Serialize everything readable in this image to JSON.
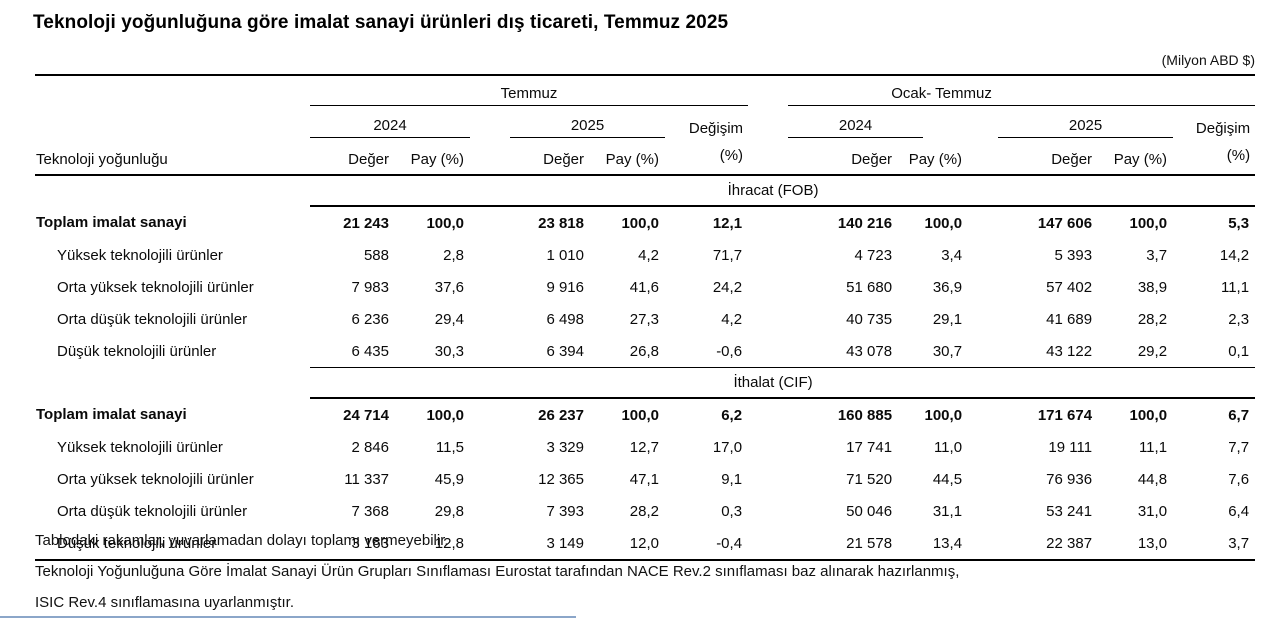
{
  "title": "Teknoloji yoğunluğuna göre imalat sanayi ürünleri dış ticareti, Temmuz 2025",
  "unit_note": "(Milyon ABD $)",
  "table": {
    "row_header": "Teknoloji yoğunluğu",
    "headers": {
      "group1": "Temmuz",
      "group2": "Ocak- Temmuz",
      "year1": "2024",
      "year2": "2025",
      "value": "Değer",
      "share": "Pay (%)",
      "change": "Değişim",
      "change_unit": "(%)"
    },
    "sections": [
      {
        "name": "İhracat (FOB)",
        "rows": [
          {
            "label": "Toplam imalat sanayi",
            "total": true,
            "values": [
              "21 243",
              "100,0",
              "23 818",
              "100,0",
              "12,1",
              "140 216",
              "100,0",
              "147 606",
              "100,0",
              "5,3"
            ]
          },
          {
            "label": "Yüksek teknolojili ürünler",
            "total": false,
            "values": [
              "588",
              "2,8",
              "1 010",
              "4,2",
              "71,7",
              "4 723",
              "3,4",
              "5 393",
              "3,7",
              "14,2"
            ]
          },
          {
            "label": "Orta yüksek teknolojili ürünler",
            "total": false,
            "values": [
              "7 983",
              "37,6",
              "9 916",
              "41,6",
              "24,2",
              "51 680",
              "36,9",
              "57 402",
              "38,9",
              "11,1"
            ]
          },
          {
            "label": "Orta düşük teknolojili ürünler",
            "total": false,
            "values": [
              "6 236",
              "29,4",
              "6 498",
              "27,3",
              "4,2",
              "40 735",
              "29,1",
              "41 689",
              "28,2",
              "2,3"
            ]
          },
          {
            "label": "Düşük teknolojili ürünler",
            "total": false,
            "values": [
              "6 435",
              "30,3",
              "6 394",
              "26,8",
              "-0,6",
              "43 078",
              "30,7",
              "43 122",
              "29,2",
              "0,1"
            ]
          }
        ]
      },
      {
        "name": "İthalat (CIF)",
        "rows": [
          {
            "label": "Toplam imalat sanayi",
            "total": true,
            "values": [
              "24 714",
              "100,0",
              "26 237",
              "100,0",
              "6,2",
              "160 885",
              "100,0",
              "171 674",
              "100,0",
              "6,7"
            ]
          },
          {
            "label": "Yüksek teknolojili ürünler",
            "total": false,
            "values": [
              "2 846",
              "11,5",
              "3 329",
              "12,7",
              "17,0",
              "17 741",
              "11,0",
              "19 111",
              "11,1",
              "7,7"
            ]
          },
          {
            "label": "Orta yüksek teknolojili ürünler",
            "total": false,
            "values": [
              "11 337",
              "45,9",
              "12 365",
              "47,1",
              "9,1",
              "71 520",
              "44,5",
              "76 936",
              "44,8",
              "7,6"
            ]
          },
          {
            "label": "Orta düşük teknolojili ürünler",
            "total": false,
            "values": [
              "7 368",
              "29,8",
              "7 393",
              "28,2",
              "0,3",
              "50 046",
              "31,1",
              "53 241",
              "31,0",
              "6,4"
            ]
          },
          {
            "label": "Düşük teknolojili ürünler",
            "total": false,
            "values": [
              "3 163",
              "12,8",
              "3 149",
              "12,0",
              "-0,4",
              "21 578",
              "13,4",
              "22 387",
              "13,0",
              "3,7"
            ]
          }
        ]
      }
    ]
  },
  "footnotes": [
    "Tablodaki rakamlar, yuvarlamadan dolayı toplamı vermeyebilir.",
    "Teknoloji Yoğunluğuna Göre İmalat Sanayi Ürün Grupları Sınıflaması Eurostat tarafından NACE Rev.2 sınıflaması baz alınarak hazırlanmış,",
    "ISIC Rev.4 sınıflamasına uyarlanmıştır."
  ]
}
